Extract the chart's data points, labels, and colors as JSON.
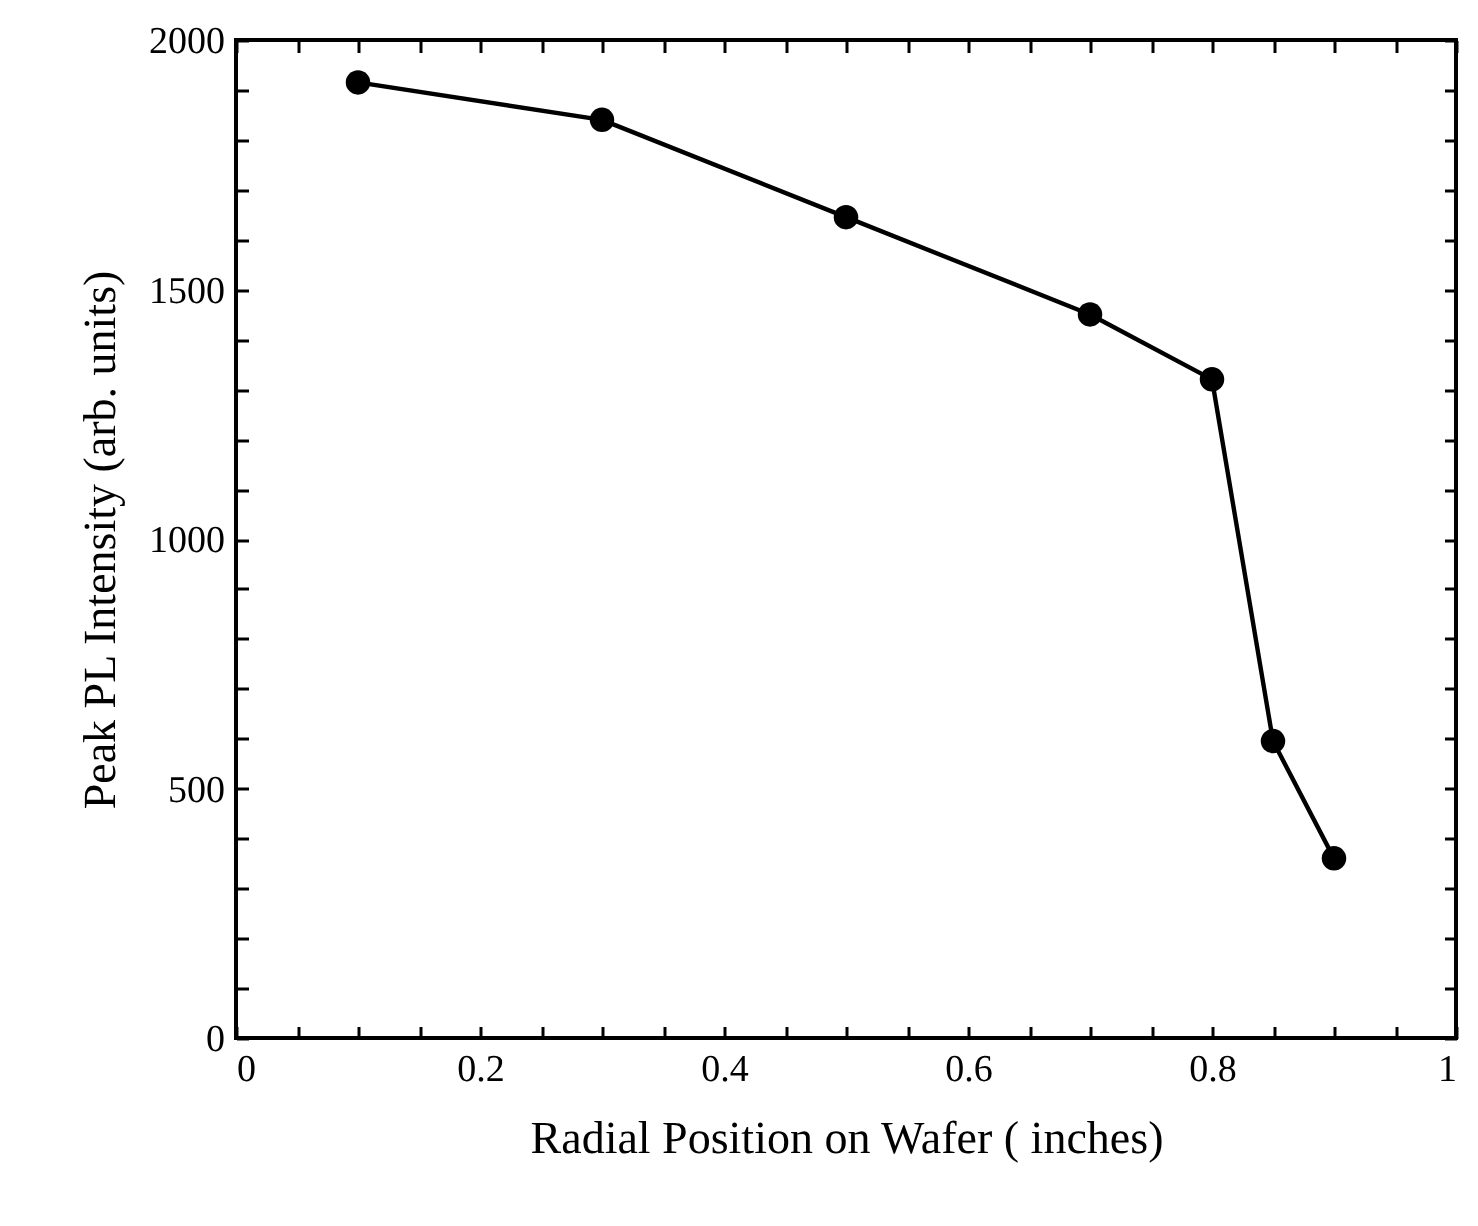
{
  "chart_data": {
    "type": "line",
    "xlabel": "Radial Position on Wafer ( inches)",
    "ylabel": "Peak PL Intensity (arb. units)",
    "x": [
      0.1,
      0.3,
      0.5,
      0.7,
      0.8,
      0.85,
      0.9
    ],
    "series": [
      {
        "color": "#000000",
        "values": [
          1915,
          1840,
          1645,
          1450,
          1320,
          595,
          360
        ]
      }
    ],
    "xlim": [
      0,
      1
    ],
    "ylim": [
      0,
      2000
    ],
    "xticks": [
      0,
      {
        "value": 0.05,
        "label": null
      },
      {
        "value": 0.1,
        "label": null
      },
      {
        "value": 0.15,
        "label": null
      },
      0.2,
      {
        "value": 0.25,
        "label": null
      },
      {
        "value": 0.3,
        "label": null
      },
      {
        "value": 0.35,
        "label": null
      },
      0.4,
      {
        "value": 0.45,
        "label": null
      },
      {
        "value": 0.5,
        "label": null
      },
      {
        "value": 0.55,
        "label": null
      },
      0.6,
      {
        "value": 0.65,
        "label": null
      },
      {
        "value": 0.7,
        "label": null
      },
      {
        "value": 0.75,
        "label": null
      },
      0.8,
      {
        "value": 0.85,
        "label": null
      },
      {
        "value": 0.9,
        "label": null
      },
      {
        "value": 0.95,
        "label": null
      },
      1
    ],
    "yticks": [
      0,
      {
        "value": 100,
        "label": null
      },
      {
        "value": 200,
        "label": null
      },
      {
        "value": 300,
        "label": null
      },
      {
        "value": 400,
        "label": null
      },
      500,
      {
        "value": 600,
        "label": null
      },
      {
        "value": 700,
        "label": null
      },
      {
        "value": 800,
        "label": null
      },
      {
        "value": 900,
        "label": null
      },
      1000,
      {
        "value": 1100,
        "label": null
      },
      {
        "value": 1200,
        "label": null
      },
      {
        "value": 1300,
        "label": null
      },
      {
        "value": 1400,
        "label": null
      },
      1500,
      {
        "value": 1600,
        "label": null
      },
      {
        "value": 1700,
        "label": null
      },
      {
        "value": 1800,
        "label": null
      },
      {
        "value": 1900,
        "label": null
      },
      2000
    ],
    "grid": false,
    "marker": "circle",
    "line_style": "solid"
  }
}
